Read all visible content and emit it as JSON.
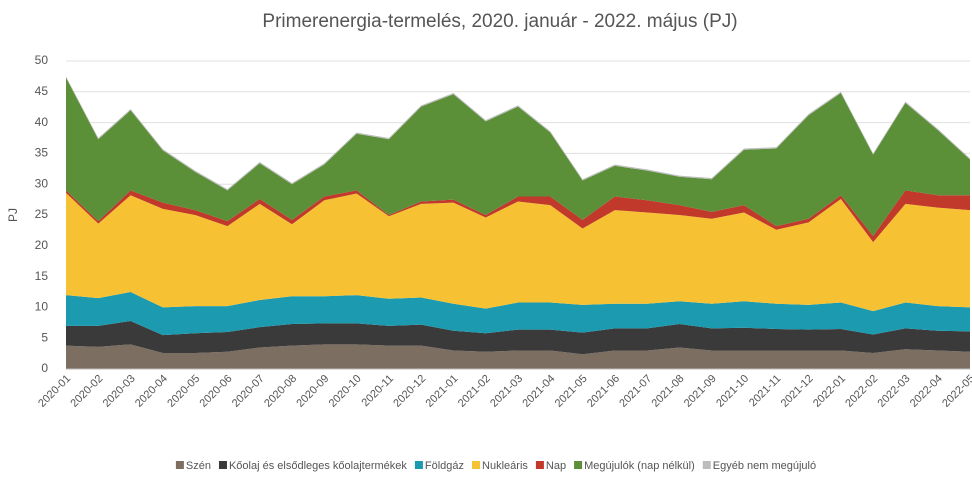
{
  "chart_data": {
    "type": "stacked_area",
    "title": "Primerenergia-termelés, 2020. január - 2022. május (PJ)",
    "y_label": "PJ",
    "categories": [
      "2020-01",
      "2020-02",
      "2020-03",
      "2020-04",
      "2020-05",
      "2020-06",
      "2020-07",
      "2020-08",
      "2020-09",
      "2020-10",
      "2020-11",
      "2020-12",
      "2021-01",
      "2021-02",
      "2021-03",
      "2021-04",
      "2021-05",
      "2021-06",
      "2021-07",
      "2021-08",
      "2021-09",
      "2021-10",
      "2021-11",
      "2021-12",
      "2022-01",
      "2022-02",
      "2022-03",
      "2022-04",
      "2022-05"
    ],
    "series": [
      {
        "name": "Szén",
        "color": "#7d6e62",
        "values": [
          3.8,
          3.6,
          4,
          2.6,
          2.6,
          2.8,
          3.5,
          3.8,
          4,
          4,
          3.8,
          3.8,
          3,
          2.8,
          3,
          3,
          2.4,
          3,
          3,
          3.5,
          3,
          3,
          3,
          3,
          3,
          2.6,
          3.2,
          3,
          2.8
        ]
      },
      {
        "name": "Kőolaj és elsődleges kőolajtermékek",
        "color": "#3a3a3a",
        "values": [
          3.2,
          3.4,
          3.8,
          2.9,
          3.2,
          3.2,
          3.3,
          3.5,
          3.4,
          3.4,
          3.2,
          3.4,
          3.2,
          3.0,
          3.4,
          3.4,
          3.5,
          3.6,
          3.6,
          3.8,
          3.6,
          3.7,
          3.5,
          3.4,
          3.5,
          3.0,
          3.4,
          3.2,
          3.3
        ]
      },
      {
        "name": "Földgáz",
        "color": "#1c9ab0",
        "values": [
          5,
          4.5,
          4.7,
          4.5,
          4.4,
          4.2,
          4.4,
          4.5,
          4.4,
          4.6,
          4.4,
          4.4,
          4.4,
          4.0,
          4.4,
          4.4,
          4.5,
          4.0,
          4.0,
          3.7,
          4.0,
          4.3,
          4.1,
          4.0,
          4.3,
          3.8,
          4.2,
          4.0,
          3.9
        ]
      },
      {
        "name": "Nukleáris",
        "color": "#f6c233",
        "values": [
          16.6,
          12.1,
          15.7,
          16,
          14.8,
          13,
          15.6,
          11.7,
          15.6,
          16.5,
          13.4,
          15.2,
          16.4,
          14.8,
          16.4,
          15.8,
          12.4,
          15.2,
          14.8,
          14,
          13.8,
          14.4,
          12,
          13.4,
          16.8,
          11.2,
          16,
          16,
          15.8
        ]
      },
      {
        "name": "Nap",
        "color": "#c0392b",
        "values": [
          0.4,
          0.4,
          0.8,
          1,
          0.8,
          0.8,
          0.8,
          0.7,
          0.6,
          0.5,
          0.2,
          0.4,
          0.5,
          0.4,
          0.8,
          1.4,
          1.4,
          2.2,
          2,
          1.6,
          1.1,
          1.2,
          0.6,
          0.6,
          0.6,
          1,
          2.2,
          2,
          2.4
        ]
      },
      {
        "name": "Megújulók (nap nélkül)",
        "color": "#5b8f38",
        "values": [
          18.3,
          13.3,
          13,
          8.5,
          6.2,
          5,
          5.8,
          5.8,
          5.2,
          9.2,
          12.3,
          15.4,
          17.1,
          15.2,
          14.6,
          10.4,
          6.4,
          5,
          4.8,
          4.6,
          5.3,
          9,
          12.6,
          16.8,
          16.6,
          13.2,
          14.2,
          10.6,
          5.8
        ]
      },
      {
        "name": "Egyéb nem megújuló",
        "color": "#bdbdbd",
        "values": [
          0.2,
          0.2,
          0.2,
          0.2,
          0.2,
          0.2,
          0.2,
          0.2,
          0.2,
          0.2,
          0.2,
          0.2,
          0.2,
          0.2,
          0.2,
          0.2,
          0.2,
          0.2,
          0.2,
          0.2,
          0.2,
          0.2,
          0.2,
          0.2,
          0.2,
          0.2,
          0.2,
          0.2,
          0.2
        ]
      }
    ],
    "ylim": [
      0,
      50
    ],
    "yticks": [
      0,
      5,
      10,
      15,
      20,
      25,
      30,
      35,
      40,
      45,
      50
    ],
    "grid": true,
    "legend": "bottom"
  }
}
